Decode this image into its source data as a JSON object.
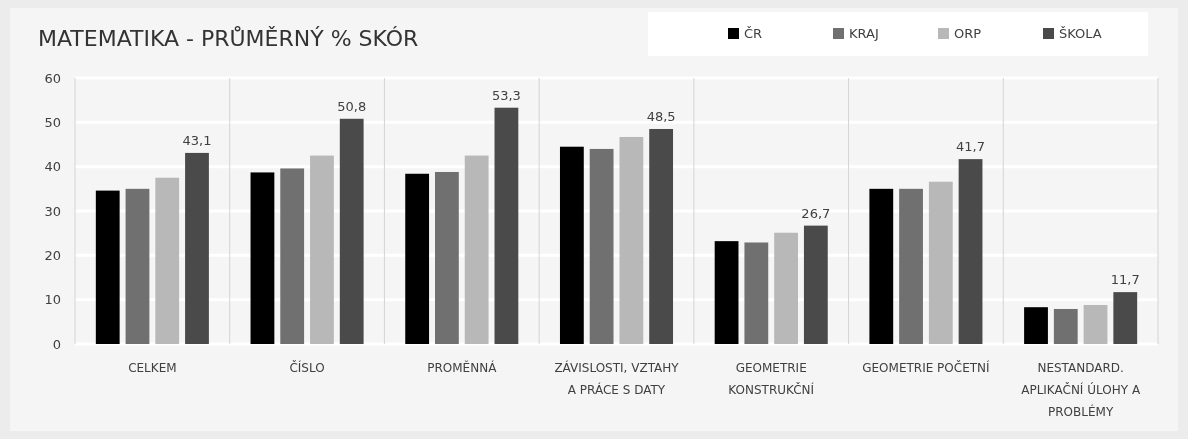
{
  "chart_data": {
    "type": "bar",
    "title": "MATEMATIKA - PRŮMĚRNÝ % SKÓR",
    "categories": [
      "CELKEM",
      "ČÍSLO",
      "PROMĚNNÁ",
      "ZÁVISLOSTI, VZTAHY A PRÁCE S DATY",
      "GEOMETRIE KONSTRUKČNÍ",
      "GEOMETRIE POČETNÍ",
      "NESTANDARD. APLIKAČNÍ ÚLOHY A PROBLÉMY"
    ],
    "series": [
      {
        "name": "ČR",
        "color": "#000000",
        "values": [
          34.6,
          38.7,
          38.4,
          44.5,
          23.2,
          35.0,
          8.3
        ]
      },
      {
        "name": "KRAJ",
        "color": "#707070",
        "values": [
          35.0,
          39.6,
          38.8,
          44.0,
          22.9,
          35.0,
          7.9
        ]
      },
      {
        "name": "ORP",
        "color": "#b8b8b8",
        "values": [
          37.5,
          42.5,
          42.5,
          46.7,
          25.1,
          36.6,
          8.8
        ]
      },
      {
        "name": "ŠKOLA",
        "color": "#4a4a4a",
        "values": [
          43.1,
          50.8,
          53.3,
          48.5,
          26.7,
          41.7,
          11.7
        ],
        "value_labels": [
          "43,1",
          "50,8",
          "53,3",
          "48,5",
          "26,7",
          "41,7",
          "11,7"
        ]
      }
    ],
    "ylim": [
      0,
      60
    ],
    "yticks": [
      0,
      10,
      20,
      30,
      40,
      50,
      60
    ],
    "grid": "y",
    "legend": "top right"
  }
}
